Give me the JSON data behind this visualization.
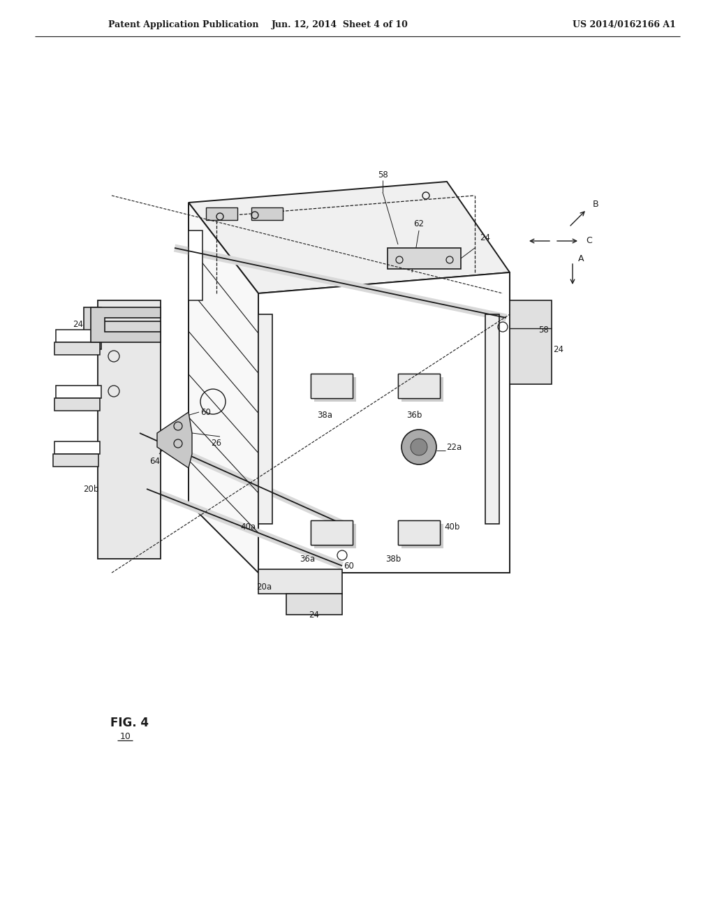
{
  "bg_color": "#ffffff",
  "lc": "#1a1a1a",
  "header_left": "Patent Application Publication",
  "header_mid": "Jun. 12, 2014  Sheet 4 of 10",
  "header_right": "US 2014/0162166 A1",
  "fig_label": "FIG. 4",
  "fig_number": "10"
}
